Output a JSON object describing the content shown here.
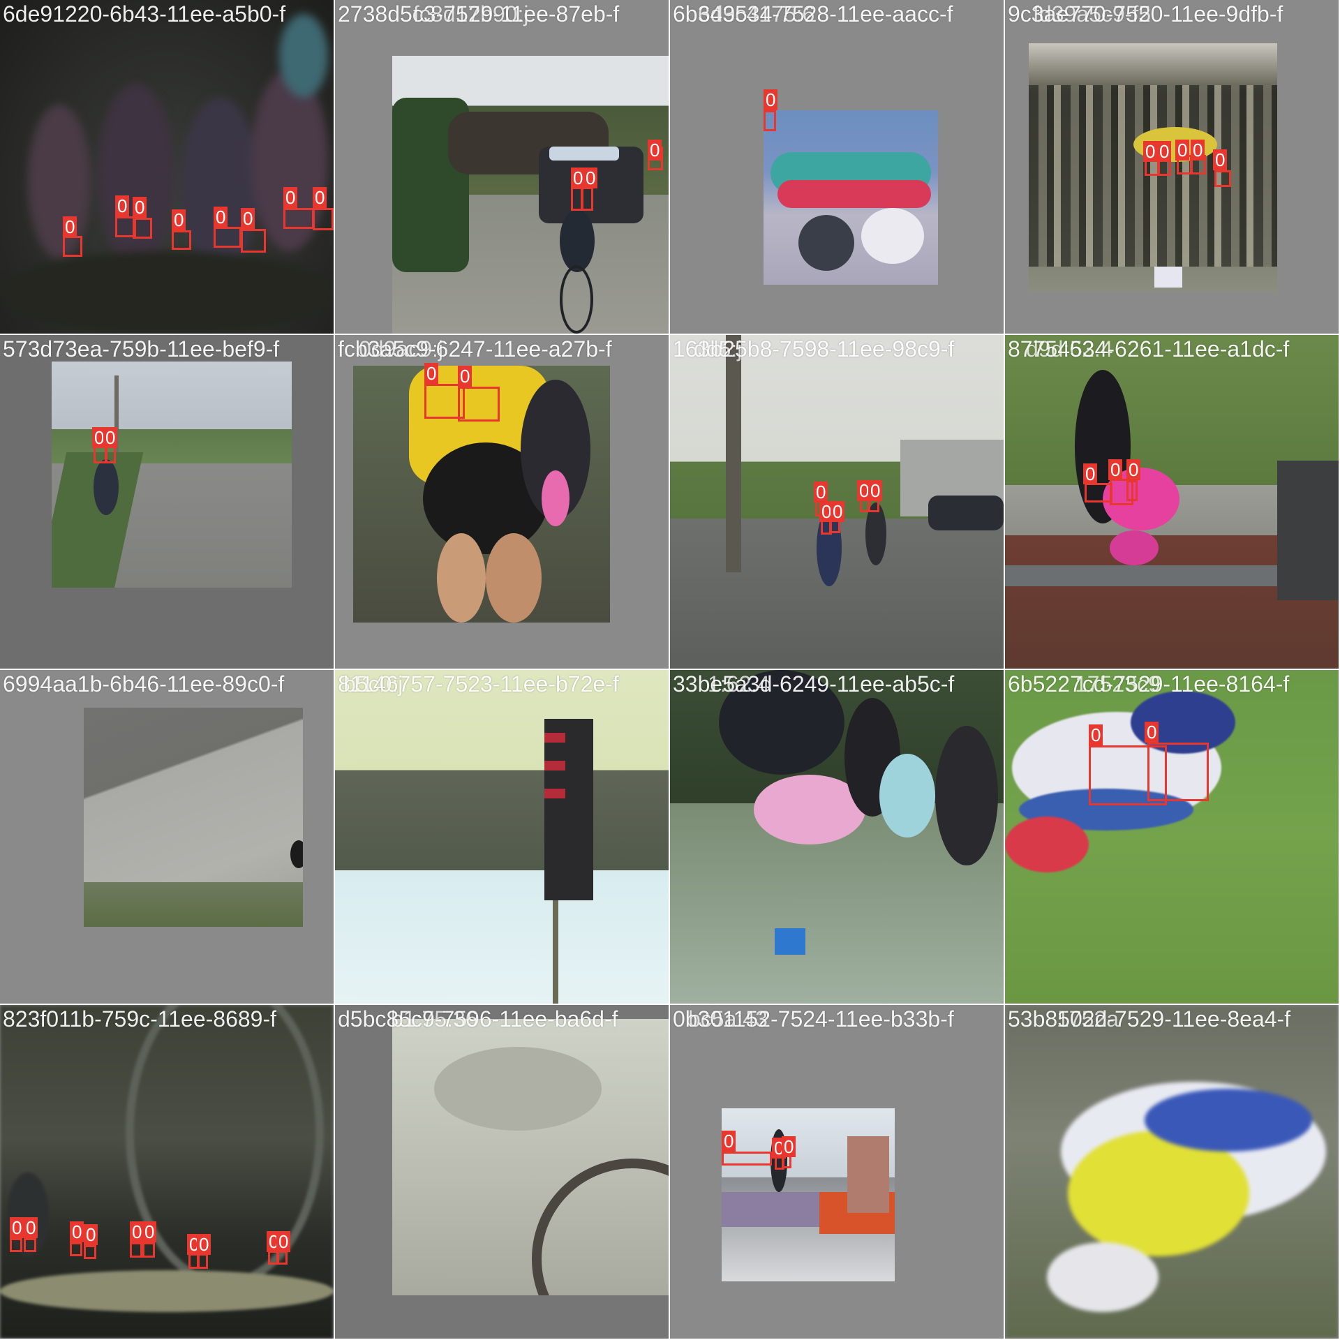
{
  "mosaic": {
    "box_label": "0",
    "box_color": "#e8372f",
    "pad_color": "#8a8a8a"
  },
  "tiles": [
    {
      "title": "6de91220-6b43-11ee-a5b0-f",
      "overlay_title": "",
      "boxes": 8
    },
    {
      "title": "2738d5c3-7529-11ee-87eb-f",
      "overlay_title": "fc8d17b90:j",
      "boxes": 3
    },
    {
      "title": "6b343534-7528-11ee-aacc-f",
      "overlay_title": "6d9c4175:6",
      "boxes": 1
    },
    {
      "title": "9c3ae770-7520-11ee-9dfb-f",
      "overlay_title": "fd39a5c9-f5",
      "boxes": 5
    },
    {
      "title": "573d73ea-759b-11ee-bef9-f",
      "overlay_title": "",
      "boxes": 2
    },
    {
      "title": "fcb3a5c9-6247-11ee-a27b-f",
      "overlay_title": "0d9ac9:j",
      "boxes": 2
    },
    {
      "title": "163b25b8-7598-11ee-98c9-f",
      "overlay_title": "dd5:j",
      "boxes": 5
    },
    {
      "title": "87754534-6261-11ee-a1dc-f",
      "overlay_title": "d9d:62.4",
      "boxes": 3
    },
    {
      "title": "6994aa1b-6b46-11ee-89c0-f",
      "overlay_title": "",
      "boxes": 0
    },
    {
      "title": "81146757-7523-11ee-b72e-f",
      "overlay_title": "b5c0:j",
      "boxes": 0
    },
    {
      "title": "33be5a3d-6249-11ee-ab5c-f",
      "overlay_title": "1:62.4",
      "boxes": 0
    },
    {
      "title": "6b5227cd-7529-11ee-8164-f",
      "overlay_title": "17523c9",
      "boxes": 2
    },
    {
      "title": "823f011b-759c-11ee-8689-f",
      "overlay_title": "",
      "boxes": 10
    },
    {
      "title": "d5bc85c9-7596-11ee-ba6d-f",
      "overlay_title": "b1:75.36",
      "boxes": 0
    },
    {
      "title": "0b301152-7524-11ee-b33b-f",
      "overlay_title": "bc5a:43",
      "boxes": 3
    },
    {
      "title": "53b8502d-7529-11ee-8ea4-f",
      "overlay_title": "1752a",
      "boxes": 0
    }
  ]
}
